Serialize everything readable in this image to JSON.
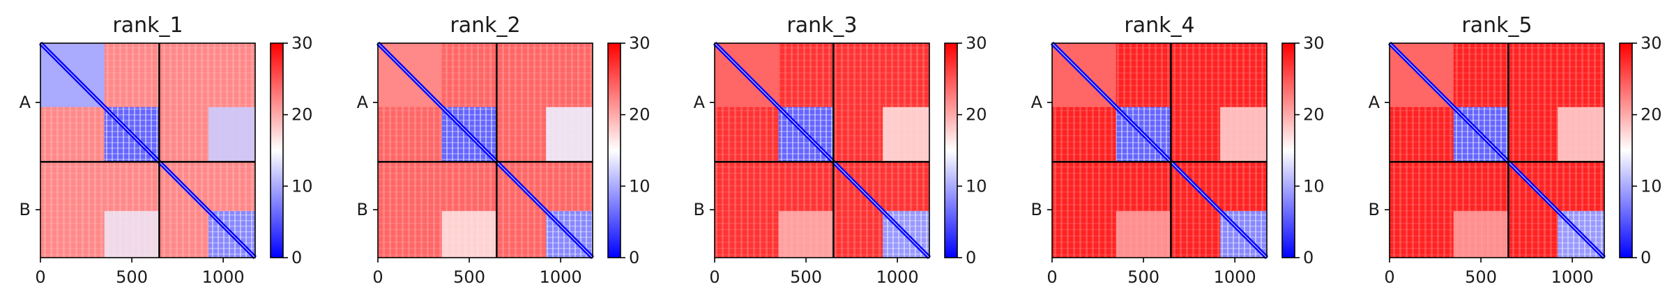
{
  "chart_data": [
    {
      "type": "heatmap",
      "title": "rank_1",
      "x_ticks": [
        "0",
        "500",
        "1000"
      ],
      "x_tick_values": [
        0,
        500,
        1000
      ],
      "xlim": [
        0,
        1175
      ],
      "y_labels": [
        "A",
        "B"
      ],
      "chain_boundary": 650,
      "colorbar": {
        "min": 0,
        "max": 30,
        "ticks": [
          "0",
          "10",
          "20",
          "30"
        ],
        "colors": [
          "#0000ff",
          "#ffffff",
          "#ff0000"
        ]
      },
      "blocks": [
        {
          "region": "A-A (0-350)",
          "level": 10
        },
        {
          "region": "A-A (350-650)",
          "level": 6
        },
        {
          "region": "B-B (650-1175)",
          "level": 8
        },
        {
          "region": "A-B",
          "level": 22
        }
      ]
    },
    {
      "type": "heatmap",
      "title": "rank_2",
      "x_ticks": [
        "0",
        "500",
        "1000"
      ],
      "x_tick_values": [
        0,
        500,
        1000
      ],
      "xlim": [
        0,
        1175
      ],
      "y_labels": [
        "A",
        "B"
      ],
      "chain_boundary": 650,
      "colorbar": {
        "min": 0,
        "max": 30,
        "ticks": [
          "0",
          "10",
          "20",
          "30"
        ],
        "colors": [
          "#0000ff",
          "#ffffff",
          "#ff0000"
        ]
      },
      "blocks": [
        {
          "region": "A-A (0-350)",
          "level": 22
        },
        {
          "region": "A-A (350-650)",
          "level": 6
        },
        {
          "region": "B-B (650-1175)",
          "level": 8
        },
        {
          "region": "A-B",
          "level": 24
        }
      ]
    },
    {
      "type": "heatmap",
      "title": "rank_3",
      "x_ticks": [
        "0",
        "500",
        "1000"
      ],
      "x_tick_values": [
        0,
        500,
        1000
      ],
      "xlim": [
        0,
        1175
      ],
      "y_labels": [
        "A",
        "B"
      ],
      "chain_boundary": 650,
      "colorbar": {
        "min": 0,
        "max": 30,
        "ticks": [
          "0",
          "10",
          "20",
          "30"
        ],
        "colors": [
          "#0000ff",
          "#ffffff",
          "#ff0000"
        ]
      },
      "blocks": [
        {
          "region": "A-A (0-350)",
          "level": 24
        },
        {
          "region": "A-A (350-650)",
          "level": 6
        },
        {
          "region": "B-B (650-1175)",
          "level": 9
        },
        {
          "region": "A-B",
          "level": 27
        }
      ]
    },
    {
      "type": "heatmap",
      "title": "rank_4",
      "x_ticks": [
        "0",
        "500",
        "1000"
      ],
      "x_tick_values": [
        0,
        500,
        1000
      ],
      "xlim": [
        0,
        1175
      ],
      "y_labels": [
        "A",
        "B"
      ],
      "chain_boundary": 650,
      "colorbar": {
        "min": 0,
        "max": 30,
        "ticks": [
          "0",
          "10",
          "20",
          "30"
        ],
        "colors": [
          "#0000ff",
          "#ffffff",
          "#ff0000"
        ]
      },
      "blocks": [
        {
          "region": "A-A (0-350)",
          "level": 24
        },
        {
          "region": "A-A (350-650)",
          "level": 6
        },
        {
          "region": "B-B (650-1175)",
          "level": 8
        },
        {
          "region": "A-B",
          "level": 28
        }
      ]
    },
    {
      "type": "heatmap",
      "title": "rank_5",
      "x_ticks": [
        "0",
        "500",
        "1000"
      ],
      "x_tick_values": [
        0,
        500,
        1000
      ],
      "xlim": [
        0,
        1175
      ],
      "y_labels": [
        "A",
        "B"
      ],
      "chain_boundary": 650,
      "colorbar": {
        "min": 0,
        "max": 30,
        "ticks": [
          "0",
          "10",
          "20",
          "30"
        ],
        "colors": [
          "#0000ff",
          "#ffffff",
          "#ff0000"
        ]
      },
      "blocks": [
        {
          "region": "A-A (0-350)",
          "level": 24
        },
        {
          "region": "A-A (350-650)",
          "level": 6
        },
        {
          "region": "B-B (650-1175)",
          "level": 9
        },
        {
          "region": "A-B",
          "level": 28
        }
      ]
    }
  ]
}
